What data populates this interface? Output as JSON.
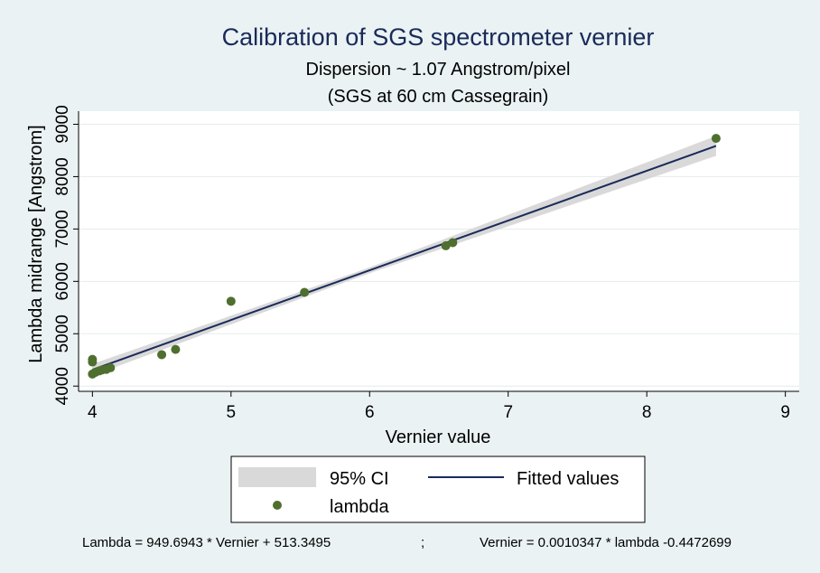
{
  "chart_data": {
    "type": "scatter",
    "title": "Calibration of SGS spectrometer vernier",
    "subtitle": "Dispersion ~ 1.07 Angstrom/pixel",
    "subtitle2": "(SGS at 60 cm Cassegrain)",
    "xlabel": "Vernier value",
    "ylabel": "Lambda midrange  [Angstrom]",
    "xlim": [
      3.9,
      9.1
    ],
    "ylim": [
      3900,
      9250
    ],
    "xticks": [
      4,
      5,
      6,
      7,
      8,
      9
    ],
    "yticks": [
      4000,
      5000,
      6000,
      7000,
      8000,
      9000
    ],
    "grid": true,
    "colors": {
      "points": "#4f6f2f",
      "fit": "#1a2a5a",
      "ci": "#d9d9d9",
      "plot_bg": "#ffffff",
      "outer_bg": "#eaf2f3",
      "grid": "#e6ecee"
    },
    "fit": {
      "slope": 949.6943,
      "intercept": 513.3495,
      "x_range": [
        4.0,
        8.5
      ]
    },
    "ci_halfwidth": [
      {
        "x": 4.0,
        "hw": 110
      },
      {
        "x": 6.0,
        "hw": 55
      },
      {
        "x": 8.5,
        "hw": 190
      }
    ],
    "series": [
      {
        "name": "lambda",
        "points": [
          {
            "x": 4.0,
            "y": 4230
          },
          {
            "x": 4.0,
            "y": 4460
          },
          {
            "x": 4.0,
            "y": 4510
          },
          {
            "x": 4.02,
            "y": 4260
          },
          {
            "x": 4.05,
            "y": 4290
          },
          {
            "x": 4.07,
            "y": 4310
          },
          {
            "x": 4.1,
            "y": 4320
          },
          {
            "x": 4.13,
            "y": 4350
          },
          {
            "x": 4.5,
            "y": 4600
          },
          {
            "x": 4.6,
            "y": 4700
          },
          {
            "x": 5.0,
            "y": 5620
          },
          {
            "x": 5.53,
            "y": 5790
          },
          {
            "x": 6.55,
            "y": 6680
          },
          {
            "x": 6.6,
            "y": 6740
          },
          {
            "x": 8.5,
            "y": 8730
          }
        ]
      }
    ],
    "legend": {
      "placement": "bottom",
      "items": [
        "95% CI",
        "Fitted values",
        "lambda"
      ]
    }
  },
  "footer": {
    "left": "Lambda = 949.6943 * Vernier + 513.3495",
    "separator": ";",
    "right": "Vernier = 0.0010347 * lambda -0.4472699"
  }
}
